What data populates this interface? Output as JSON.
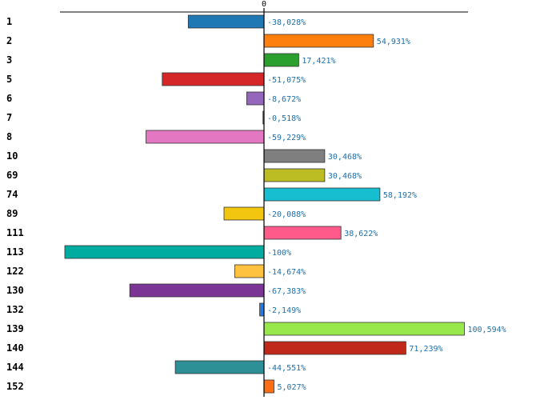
{
  "chart_data": {
    "type": "bar",
    "orientation": "horizontal",
    "title": "",
    "xlabel": "",
    "ylabel": "",
    "zero_label": "0",
    "xlim": [
      -100,
      100.594
    ],
    "grid": false,
    "categories": [
      "1",
      "2",
      "3",
      "5",
      "6",
      "7",
      "8",
      "10",
      "69",
      "74",
      "89",
      "111",
      "113",
      "122",
      "130",
      "132",
      "139",
      "140",
      "144",
      "152"
    ],
    "values": [
      -38.028,
      54.931,
      17.421,
      -51.075,
      -8.672,
      -0.518,
      -59.229,
      30.468,
      30.468,
      58.192,
      -20.088,
      38.622,
      -100,
      -14.674,
      -67.383,
      -2.149,
      100.594,
      71.239,
      -44.551,
      5.027
    ],
    "value_labels": [
      "-38,028%",
      "54,931%",
      "17,421%",
      "-51,075%",
      "-8,672%",
      "-0,518%",
      "-59,229%",
      "30,468%",
      "30,468%",
      "58,192%",
      "-20,088%",
      "38,622%",
      "-100%",
      "-14,674%",
      "-67,383%",
      "-2,149%",
      "100,594%",
      "71,239%",
      "-44,551%",
      "5,027%"
    ],
    "colors": [
      "#1f77b4",
      "#ff7f0e",
      "#2ca02c",
      "#d62728",
      "#9467bd",
      "#8c564b",
      "#e377c2",
      "#7f7f7f",
      "#bcbd22",
      "#17becf",
      "#f2c50f",
      "#ff5a8a",
      "#00aca0",
      "#ffc140",
      "#7b3594",
      "#2a78dc",
      "#98e84c",
      "#c0281a",
      "#2d9096",
      "#ff6e14"
    ],
    "label_color": "#1f6fa8"
  }
}
